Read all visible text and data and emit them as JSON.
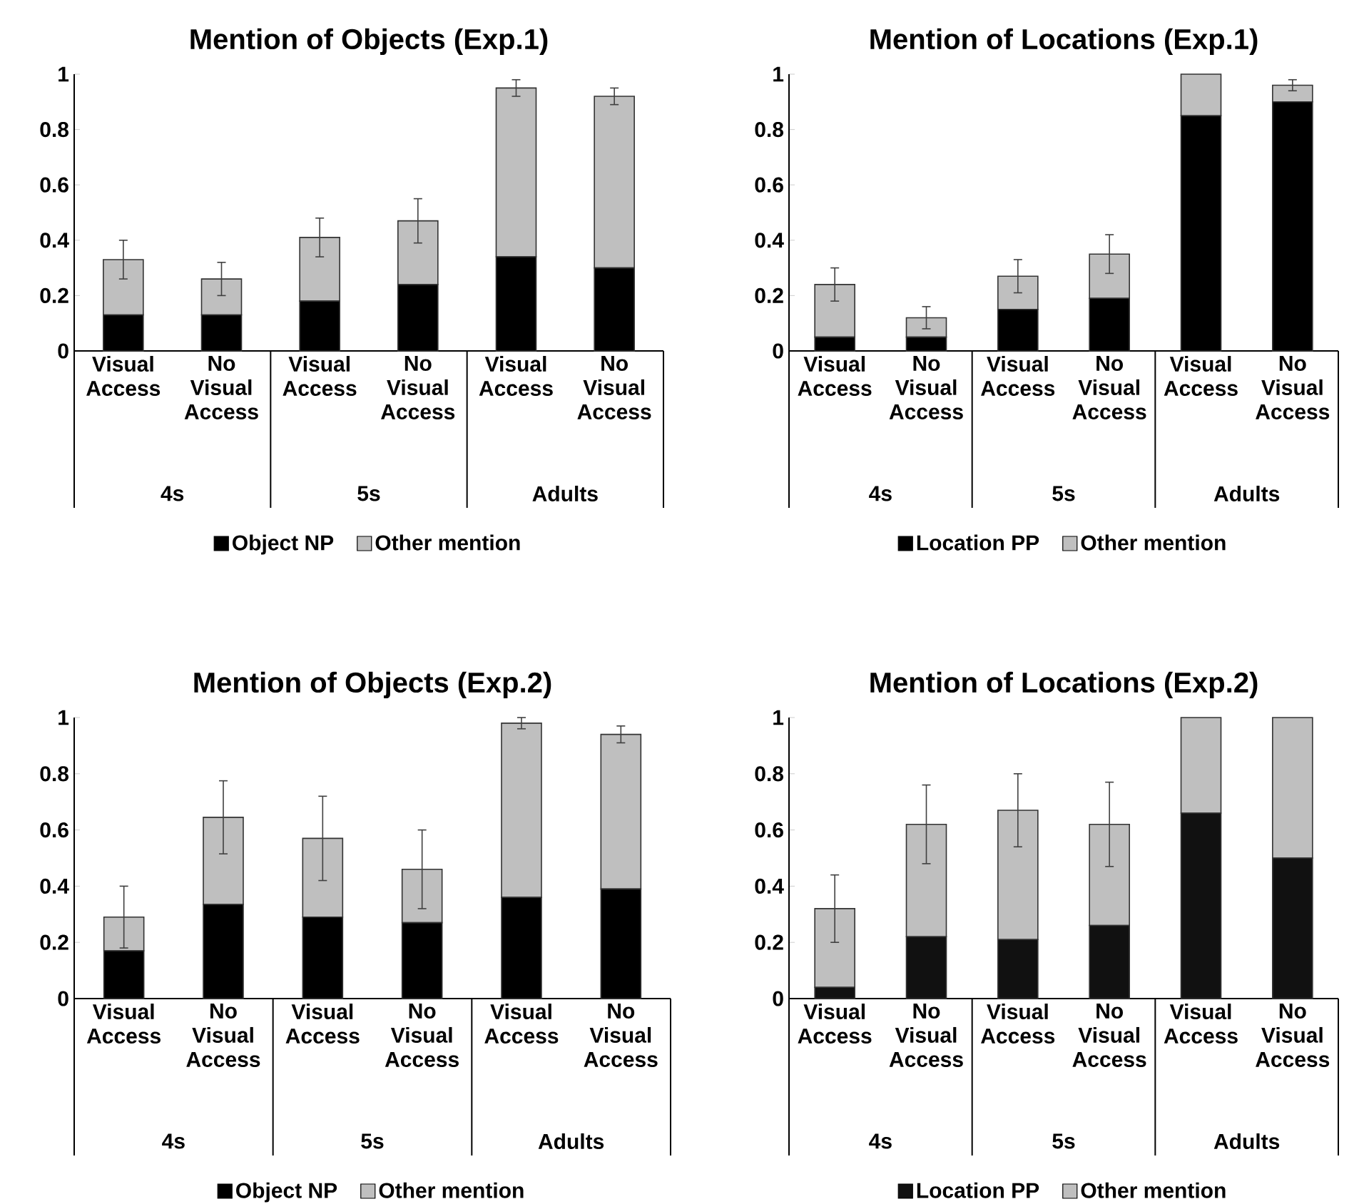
{
  "chart_data": [
    {
      "type": "bar",
      "title": "Mention of Objects (Exp.1)",
      "categories": [
        "Visual Access",
        "No Visual Access",
        "Visual Access",
        "No Visual Access",
        "Visual Access",
        "No Visual Access"
      ],
      "annotations": [
        "4s",
        "5s",
        "Adults"
      ],
      "stacked": true,
      "legend": "bottom",
      "ylim": [
        0,
        1
      ],
      "yticks": [
        0,
        0.2,
        0.4,
        0.6,
        0.8,
        1
      ],
      "series": [
        {
          "name": "Object NP",
          "color": "#000000",
          "values": [
            0.13,
            0.13,
            0.18,
            0.24,
            0.34,
            0.3
          ]
        },
        {
          "name": "Other mention",
          "color": "#bfbfbf",
          "values": [
            0.2,
            0.13,
            0.23,
            0.23,
            0.61,
            0.62
          ],
          "errors": [
            0.07,
            0.06,
            0.07,
            0.08,
            0.03,
            0.03
          ]
        }
      ]
    },
    {
      "type": "bar",
      "title": "Mention of Locations (Exp.1)",
      "categories": [
        "Visual Access",
        "No Visual Access",
        "Visual Access",
        "No Visual Access",
        "Visual Access",
        "No Visual Access"
      ],
      "annotations": [
        "4s",
        "5s",
        "Adults"
      ],
      "stacked": true,
      "legend": "bottom",
      "ylim": [
        0,
        1
      ],
      "yticks": [
        0,
        0.2,
        0.4,
        0.6,
        0.8,
        1
      ],
      "series": [
        {
          "name": "Location PP",
          "color": "#000000",
          "values": [
            0.05,
            0.05,
            0.15,
            0.19,
            0.85,
            0.9
          ]
        },
        {
          "name": "Other mention",
          "color": "#bfbfbf",
          "values": [
            0.19,
            0.07,
            0.12,
            0.16,
            0.15,
            0.06
          ],
          "errors": [
            0.06,
            0.04,
            0.06,
            0.07,
            null,
            0.02
          ]
        }
      ]
    },
    {
      "type": "bar",
      "title": "Mention of Objects (Exp.2)",
      "categories": [
        "Visual Access",
        "No Visual Access",
        "Visual Access",
        "No Visual Access",
        "Visual Access",
        "No Visual Access"
      ],
      "annotations": [
        "4s",
        "5s",
        "Adults"
      ],
      "stacked": true,
      "legend": "bottom",
      "ylim": [
        0,
        1
      ],
      "yticks": [
        0,
        0.2,
        0.4,
        0.6,
        0.8,
        1
      ],
      "series": [
        {
          "name": "Object NP",
          "color": "#000000",
          "values": [
            0.17,
            0.335,
            0.29,
            0.27,
            0.36,
            0.39
          ]
        },
        {
          "name": "Other mention",
          "color": "#bfbfbf",
          "values": [
            0.12,
            0.31,
            0.28,
            0.19,
            0.62,
            0.55
          ],
          "errors": [
            0.11,
            0.13,
            0.15,
            0.14,
            0.02,
            0.03
          ]
        }
      ]
    },
    {
      "type": "bar",
      "title": "Mention of Locations (Exp.2)",
      "categories": [
        "Visual Access",
        "No Visual Access",
        "Visual Access",
        "No Visual Access",
        "Visual Access",
        "No Visual Access"
      ],
      "annotations": [
        "4s",
        "5s",
        "Adults"
      ],
      "stacked": true,
      "legend": "bottom",
      "ylim": [
        0,
        1
      ],
      "yticks": [
        0,
        0.2,
        0.4,
        0.6,
        0.8,
        1
      ],
      "series": [
        {
          "name": "Location PP",
          "color": "#111111",
          "values": [
            0.04,
            0.22,
            0.21,
            0.26,
            0.66,
            0.5
          ]
        },
        {
          "name": "Other mention",
          "color": "#bfbfbf",
          "values": [
            0.28,
            0.4,
            0.46,
            0.36,
            0.34,
            0.5
          ],
          "errors": [
            0.12,
            0.14,
            0.13,
            0.15,
            null,
            null
          ]
        }
      ]
    }
  ]
}
